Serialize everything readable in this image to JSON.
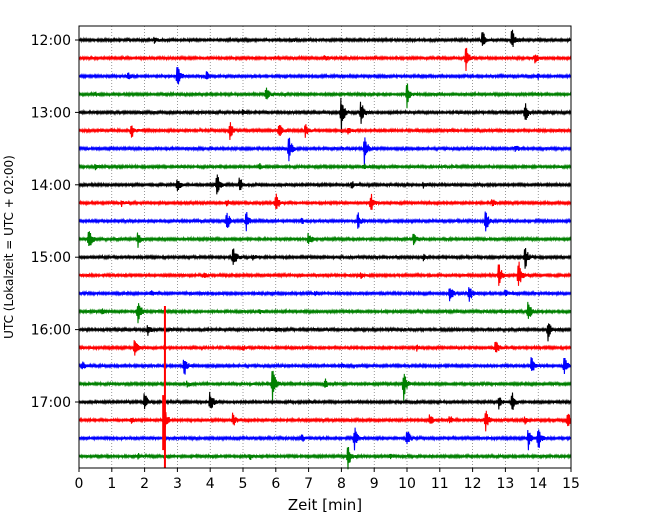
{
  "chart_data": {
    "type": "line",
    "title": "",
    "xlabel": "Zeit  [min]",
    "ylabel": "UTC (Lokalzeit = UTC + 02:00)",
    "xlim": [
      0,
      15
    ],
    "x_ticks": [
      0,
      1,
      2,
      3,
      4,
      5,
      6,
      7,
      8,
      9,
      10,
      11,
      12,
      13,
      14,
      15
    ],
    "y_tick_labels": [
      "12:00",
      "13:00",
      "14:00",
      "15:00",
      "16:00",
      "17:00"
    ],
    "grid": "vertical dotted lines at every minute",
    "row_colors": [
      "#000000",
      "#ff0000",
      "#0000ff",
      "#008000"
    ],
    "rows": [
      {
        "label": "12:00",
        "color": "#000000",
        "events": [
          [
            2.3,
            0.25
          ],
          [
            6.5,
            0.2
          ],
          [
            12.3,
            0.8
          ],
          [
            13.2,
            0.8
          ]
        ]
      },
      {
        "label": "12:15",
        "color": "#ff0000",
        "events": [
          [
            11.8,
            0.9
          ],
          [
            13.9,
            0.4
          ],
          [
            7.5,
            0.15
          ]
        ]
      },
      {
        "label": "12:30",
        "color": "#0000ff",
        "events": [
          [
            3.0,
            1.0
          ],
          [
            3.9,
            0.4
          ],
          [
            1.5,
            0.3
          ],
          [
            14.0,
            0.2
          ]
        ]
      },
      {
        "label": "12:45",
        "color": "#008000",
        "events": [
          [
            5.7,
            0.7
          ],
          [
            10.0,
            1.0
          ],
          [
            0.5,
            0.15
          ]
        ]
      },
      {
        "label": "13:00",
        "color": "#000000",
        "events": [
          [
            8.0,
            1.4
          ],
          [
            8.6,
            0.9
          ],
          [
            13.6,
            0.8
          ],
          [
            5.0,
            0.2
          ]
        ]
      },
      {
        "label": "13:15",
        "color": "#ff0000",
        "events": [
          [
            1.6,
            0.6
          ],
          [
            4.6,
            0.8
          ],
          [
            6.1,
            0.6
          ],
          [
            6.9,
            0.5
          ],
          [
            8.2,
            0.4
          ]
        ]
      },
      {
        "label": "13:30",
        "color": "#0000ff",
        "events": [
          [
            6.4,
            1.0
          ],
          [
            8.7,
            1.3
          ],
          [
            13.3,
            0.3
          ]
        ]
      },
      {
        "label": "13:45",
        "color": "#008000",
        "events": [
          [
            0.5,
            0.2
          ],
          [
            5.5,
            0.2
          ],
          [
            8.7,
            0.2
          ]
        ]
      },
      {
        "label": "14:00",
        "color": "#000000",
        "events": [
          [
            3.0,
            0.5
          ],
          [
            4.2,
            1.0
          ],
          [
            4.9,
            0.6
          ],
          [
            8.3,
            0.3
          ],
          [
            10.5,
            0.2
          ]
        ]
      },
      {
        "label": "14:15",
        "color": "#ff0000",
        "events": [
          [
            1.3,
            0.2
          ],
          [
            6.0,
            0.8
          ],
          [
            8.9,
            0.8
          ],
          [
            12.6,
            0.3
          ],
          [
            4.5,
            0.3
          ]
        ]
      },
      {
        "label": "14:30",
        "color": "#0000ff",
        "events": [
          [
            4.5,
            0.9
          ],
          [
            5.1,
            0.7
          ],
          [
            8.5,
            0.7
          ],
          [
            12.4,
            0.9
          ],
          [
            6.8,
            0.2
          ]
        ]
      },
      {
        "label": "14:45",
        "color": "#008000",
        "events": [
          [
            0.3,
            1.0
          ],
          [
            1.8,
            0.6
          ],
          [
            7.0,
            0.6
          ],
          [
            10.2,
            0.5
          ]
        ]
      },
      {
        "label": "15:00",
        "color": "#000000",
        "events": [
          [
            4.7,
            1.0
          ],
          [
            13.6,
            1.0
          ],
          [
            5.3,
            0.2
          ],
          [
            10.5,
            0.2
          ]
        ]
      },
      {
        "label": "15:15",
        "color": "#ff0000",
        "events": [
          [
            12.8,
            1.0
          ],
          [
            13.4,
            1.3
          ],
          [
            3.8,
            0.2
          ],
          [
            8.6,
            0.2
          ]
        ]
      },
      {
        "label": "15:30",
        "color": "#0000ff",
        "events": [
          [
            11.3,
            0.8
          ],
          [
            11.9,
            0.8
          ],
          [
            2.2,
            0.2
          ],
          [
            7.2,
            0.2
          ],
          [
            13.0,
            0.3
          ]
        ]
      },
      {
        "label": "15:45",
        "color": "#008000",
        "events": [
          [
            1.8,
            1.0
          ],
          [
            13.7,
            0.9
          ],
          [
            0.7,
            0.2
          ],
          [
            5.5,
            0.2
          ]
        ]
      },
      {
        "label": "16:00",
        "color": "#000000",
        "events": [
          [
            2.1,
            0.4
          ],
          [
            14.3,
            0.8
          ],
          [
            6.0,
            0.2
          ]
        ]
      },
      {
        "label": "16:15",
        "color": "#ff0000",
        "events": [
          [
            1.7,
            0.8
          ],
          [
            12.7,
            0.6
          ],
          [
            5.0,
            0.2
          ],
          [
            10.3,
            0.2
          ]
        ]
      },
      {
        "label": "16:30",
        "color": "#0000ff",
        "events": [
          [
            0.1,
            0.4
          ],
          [
            3.2,
            0.9
          ],
          [
            13.8,
            0.8
          ],
          [
            14.8,
            0.7
          ],
          [
            8.0,
            0.2
          ]
        ]
      },
      {
        "label": "16:45",
        "color": "#008000",
        "events": [
          [
            5.9,
            1.3
          ],
          [
            9.9,
            1.2
          ],
          [
            7.5,
            0.4
          ],
          [
            3.3,
            0.2
          ]
        ]
      },
      {
        "label": "17:00",
        "color": "#000000",
        "events": [
          [
            2.0,
            0.8
          ],
          [
            4.0,
            0.9
          ],
          [
            12.8,
            0.5
          ],
          [
            13.2,
            0.8
          ],
          [
            7.0,
            0.2
          ]
        ]
      },
      {
        "label": "17:15",
        "color": "#ff0000",
        "events": [
          [
            1.6,
            0.2
          ],
          [
            2.6,
            1.2
          ],
          [
            4.7,
            0.6
          ],
          [
            10.7,
            0.5
          ],
          [
            11.3,
            0.4
          ],
          [
            12.4,
            0.8
          ],
          [
            13.6,
            0.3
          ],
          [
            14.9,
            0.6
          ]
        ]
      },
      {
        "label": "17:30",
        "color": "#0000ff",
        "events": [
          [
            8.4,
            0.9
          ],
          [
            10.0,
            0.8
          ],
          [
            13.7,
            0.8
          ],
          [
            14.0,
            1.0
          ],
          [
            6.8,
            0.3
          ]
        ]
      },
      {
        "label": "17:45",
        "color": "#008000",
        "events": [
          [
            8.2,
            1.0
          ],
          [
            5.2,
            0.3
          ],
          [
            9.5,
            0.2
          ],
          [
            1.8,
            0.2
          ]
        ]
      }
    ],
    "long_spike": {
      "row": "17:15",
      "x": 2.62,
      "color": "#ff0000"
    }
  }
}
